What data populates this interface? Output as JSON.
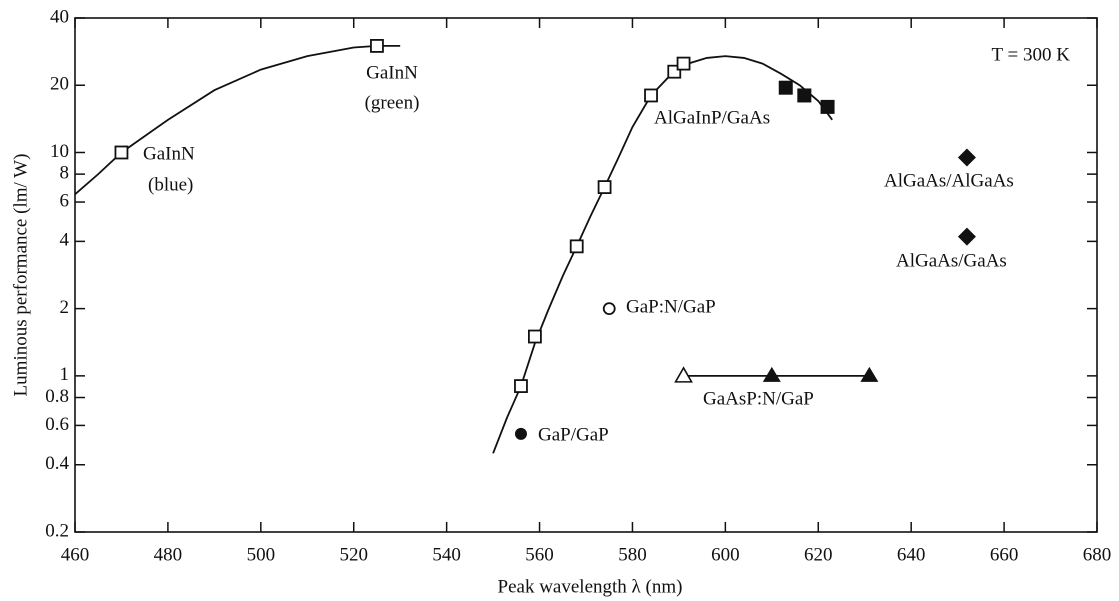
{
  "chart_data": {
    "type": "scatter",
    "xlabel": "Peak wavelength λ (nm)",
    "ylabel": "Luminous performance (lm/ W)",
    "xlim": [
      460,
      680
    ],
    "xticks": [
      460,
      480,
      500,
      520,
      540,
      560,
      580,
      600,
      620,
      640,
      660,
      680
    ],
    "ylim": [
      0.2,
      40
    ],
    "yticks": [
      0.2,
      0.4,
      0.6,
      0.8,
      1,
      2,
      4,
      6,
      8,
      10,
      20,
      40
    ],
    "yscale": "log",
    "annotations": [
      "T = 300 K",
      "GaInN",
      "(green)",
      "GaInN",
      "(blue)",
      "AlGaInP/GaAs",
      "AlGaAs/AlGaAs",
      "AlGaAs/GaAs",
      "GaP:N/GaP",
      "GaAsP:N/GaP",
      "GaP/GaP"
    ],
    "series": [
      {
        "kind": "line",
        "color": "#111",
        "x": [
          460,
          465,
          470,
          480,
          490,
          500,
          510,
          520,
          525,
          530
        ],
        "values": [
          6.5,
          8,
          10,
          14,
          19,
          23.5,
          27,
          29.5,
          30,
          30
        ]
      },
      {
        "kind": "line",
        "color": "#111",
        "x": [
          550,
          553,
          556,
          559,
          562,
          565,
          568,
          571,
          574,
          577,
          580,
          584,
          588,
          592,
          596,
          600,
          604,
          608,
          612,
          616,
          620,
          623
        ],
        "values": [
          0.45,
          0.65,
          0.9,
          1.4,
          2,
          2.8,
          3.8,
          5.2,
          7,
          9.5,
          13,
          18,
          22,
          25,
          26.5,
          27,
          26.5,
          25,
          22.5,
          20,
          17,
          14
        ]
      },
      {
        "kind": "line",
        "color": "#111",
        "x": [
          591,
          631
        ],
        "values": [
          1,
          1
        ]
      },
      {
        "kind": "square-open",
        "color": "#111",
        "x": [
          470,
          525,
          556,
          559,
          568,
          574,
          584,
          589,
          591
        ],
        "values": [
          10,
          30,
          0.9,
          1.5,
          3.8,
          7,
          18,
          23,
          25
        ]
      },
      {
        "kind": "square-filled",
        "color": "#111",
        "x": [
          613,
          617,
          622
        ],
        "values": [
          19.5,
          18,
          16
        ]
      },
      {
        "kind": "diamond-filled",
        "color": "#111",
        "x": [
          652,
          652
        ],
        "values": [
          9.5,
          4.2
        ]
      },
      {
        "kind": "circle-open",
        "color": "#111",
        "x": [
          575
        ],
        "values": [
          2
        ]
      },
      {
        "kind": "circle-filled",
        "color": "#111",
        "x": [
          556
        ],
        "values": [
          0.55
        ]
      },
      {
        "kind": "triangle-open",
        "color": "#111",
        "x": [
          591
        ],
        "values": [
          1
        ]
      },
      {
        "kind": "triangle-filled",
        "color": "#111",
        "x": [
          610,
          631
        ],
        "values": [
          1,
          1
        ]
      }
    ]
  }
}
